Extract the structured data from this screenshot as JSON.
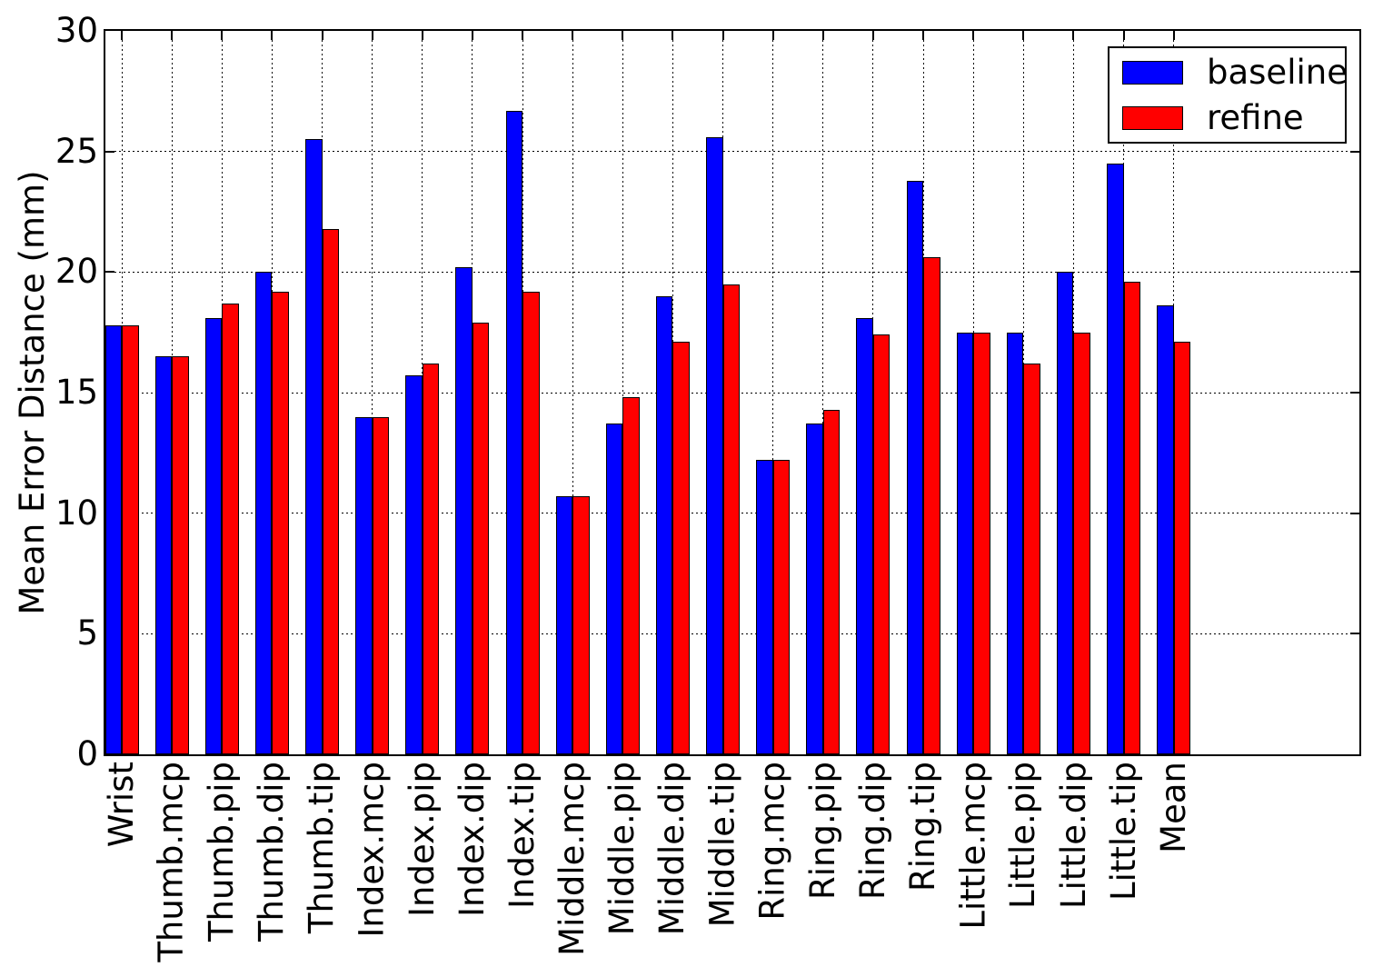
{
  "figure": {
    "background": "#ffffff",
    "text_color": "#000000"
  },
  "legend": {
    "items": [
      {
        "label": "baseline",
        "color": "#0000ff"
      },
      {
        "label": "refine",
        "color": "#ff0000"
      }
    ]
  },
  "chart_data": {
    "type": "bar",
    "title": "",
    "xlabel": "",
    "ylabel": "Mean Error Distance (mm)",
    "ylim": [
      0,
      30
    ],
    "yticks": [
      0,
      5,
      10,
      15,
      20,
      25,
      30
    ],
    "grid": true,
    "grid_style": "dotted",
    "legend_position": "upper right",
    "bar_edge_color": "#000000",
    "categories": [
      "Wrist",
      "Thumb.mcp",
      "Thumb.pip",
      "Thumb.dip",
      "Thumb.tip",
      "Index.mcp",
      "Index.pip",
      "Index.dip",
      "Index.tip",
      "Middle.mcp",
      "Middle.pip",
      "Middle.dip",
      "Middle.tip",
      "Ring.mcp",
      "Ring.pip",
      "Ring.dip",
      "Ring.tip",
      "Little.mcp",
      "Little.pip",
      "Little.dip",
      "Little.tip",
      "Mean"
    ],
    "series": [
      {
        "name": "baseline",
        "color": "#0000ff",
        "values": [
          17.8,
          16.5,
          18.1,
          20.0,
          25.5,
          14.0,
          15.7,
          20.2,
          26.7,
          10.7,
          13.7,
          19.0,
          25.6,
          12.2,
          13.7,
          18.1,
          23.8,
          17.5,
          17.5,
          20.0,
          24.5,
          18.6
        ]
      },
      {
        "name": "refine",
        "color": "#ff0000",
        "values": [
          17.8,
          16.5,
          18.7,
          19.2,
          21.8,
          14.0,
          16.2,
          17.9,
          19.2,
          10.7,
          14.8,
          17.1,
          19.5,
          12.2,
          14.3,
          17.4,
          20.6,
          17.5,
          16.2,
          17.5,
          19.6,
          17.1
        ]
      }
    ]
  }
}
